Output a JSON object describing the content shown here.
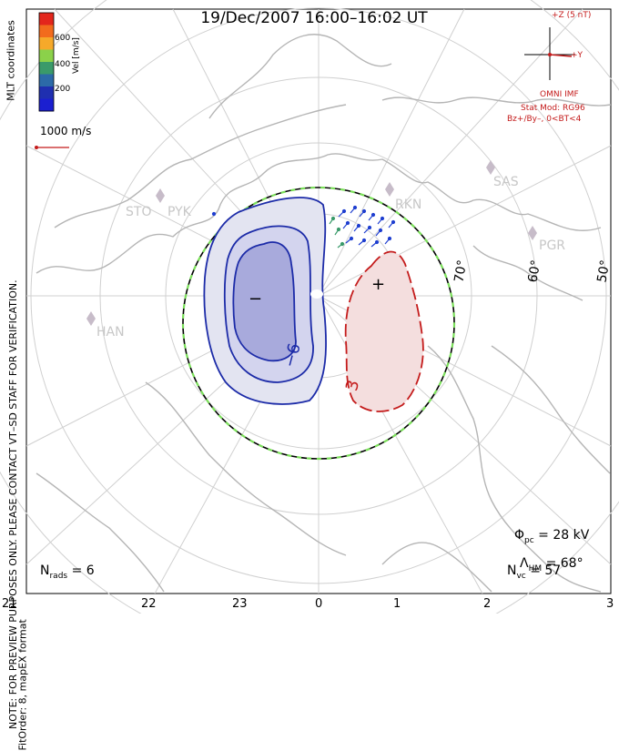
{
  "title": "19/Dec/2007 16:00–16:02 UT",
  "side_note": "NOTE: FOR PREVIEW PURPOSES ONLY. PLEASE CONTACT VT–SD STAFF FOR VERIFICATION.",
  "side_note2": "FitOrder: 8, mapEX format",
  "coord_label": "MLT coordinates",
  "colorbar": {
    "axis_label": "Vel [m/s]",
    "ticks": [
      "600",
      "400",
      "200"
    ],
    "colors": [
      "#e3261c",
      "#f26b1d",
      "#f6a92a",
      "#8bd14a",
      "#3a9a6a",
      "#2c6aa8",
      "#1f2fb0",
      "#1b1fd0"
    ]
  },
  "reference_vector": "1000 m/s",
  "imf": {
    "z_label": "+Z (5 nT)",
    "y_label": "+Y",
    "source": "OMNI IMF",
    "model": "Stat Mod: RG96",
    "condition": "Bz+/By–, 0<BT<4",
    "color": "#c41b1b"
  },
  "stats": {
    "phi_pc": "= 28 kV",
    "lambda_hm": "= 68°",
    "n_vc": "= 57",
    "n_rads": "= 6"
  },
  "mlt_ticks": [
    "21",
    "22",
    "23",
    "0",
    "1",
    "2",
    "3"
  ],
  "lat_labels": [
    "70°",
    "60°",
    "50°"
  ],
  "stations": [
    "STO",
    "PYK",
    "RKN",
    "SAS",
    "PGR",
    "HAN"
  ],
  "contours": {
    "negative_label": "−6",
    "positive_label": "3",
    "negative_sign": "−",
    "positive_sign": "+",
    "negative_color": "#1c2ba8",
    "positive_color": "#c41b1b"
  }
}
